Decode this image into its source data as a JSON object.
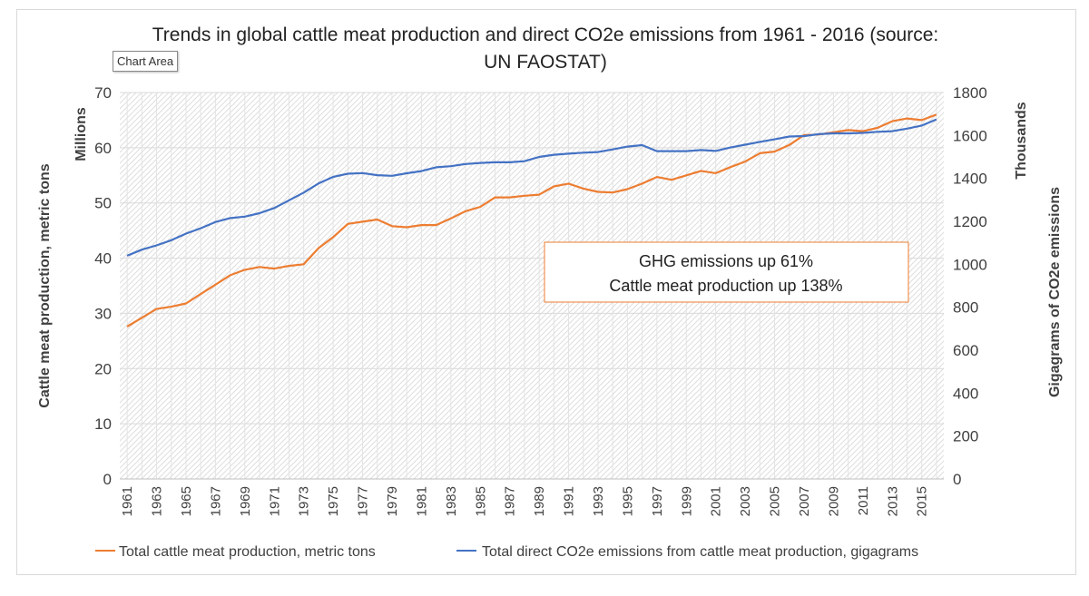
{
  "tooltip": {
    "label": "Chart Area"
  },
  "annotation": {
    "line1": "GHG emissions up 61%",
    "line2": "Cattle meat production up 138%",
    "border_color": "#ed7d31"
  },
  "chart_data": {
    "type": "line",
    "title_line1": "Trends in global cattle meat production and direct CO2e emissions from 1961 - 2016 (source:",
    "title_line2": "UN FAOSTAT)",
    "x": [
      1961,
      1962,
      1963,
      1964,
      1965,
      1966,
      1967,
      1968,
      1969,
      1970,
      1971,
      1972,
      1973,
      1974,
      1975,
      1976,
      1977,
      1978,
      1979,
      1980,
      1981,
      1982,
      1983,
      1984,
      1985,
      1986,
      1987,
      1988,
      1989,
      1990,
      1991,
      1992,
      1993,
      1994,
      1995,
      1996,
      1997,
      1998,
      1999,
      2000,
      2001,
      2002,
      2003,
      2004,
      2005,
      2006,
      2007,
      2008,
      2009,
      2010,
      2011,
      2012,
      2013,
      2014,
      2015,
      2016
    ],
    "x_tick_labels": [
      "1961",
      "1963",
      "1965",
      "1967",
      "1969",
      "1971",
      "1973",
      "1975",
      "1977",
      "1979",
      "1981",
      "1983",
      "1985",
      "1987",
      "1989",
      "1991",
      "1993",
      "1995",
      "1997",
      "1999",
      "2001",
      "2003",
      "2005",
      "2007",
      "2009",
      "2011",
      "2013",
      "2015"
    ],
    "y_left": {
      "label": "Cattle meat production, metric tons",
      "unit_label": "Millions",
      "ylim": [
        0,
        70
      ],
      "ticks": [
        "0",
        "10",
        "20",
        "30",
        "40",
        "50",
        "60",
        "70"
      ]
    },
    "y_right": {
      "label": "Gigagrams of CO2e emissions",
      "unit_label": "Thousands",
      "ylim": [
        0,
        1800
      ],
      "ticks": [
        "0",
        "200",
        "400",
        "600",
        "800",
        "1000",
        "1200",
        "1400",
        "1600",
        "1800"
      ]
    },
    "series": [
      {
        "name": "Total cattle meat production, metric tons",
        "axis": "left",
        "color": "#ed7d31",
        "values": [
          27.6,
          29.2,
          30.8,
          31.2,
          31.8,
          33.5,
          35.2,
          36.9,
          37.9,
          38.4,
          38.1,
          38.6,
          38.9,
          41.8,
          43.8,
          46.2,
          46.6,
          47.0,
          45.8,
          45.6,
          46.0,
          46.0,
          47.2,
          48.5,
          49.3,
          51.0,
          51.0,
          51.3,
          51.5,
          53.0,
          53.5,
          52.6,
          52.0,
          51.9,
          52.5,
          53.5,
          54.7,
          54.2,
          55.0,
          55.8,
          55.4,
          56.5,
          57.5,
          59.0,
          59.3,
          60.5,
          62.3,
          62.4,
          62.8,
          63.2,
          63.0,
          63.6,
          64.8,
          65.3,
          65.0,
          66.0
        ]
      },
      {
        "name": "Total direct CO2e emissions from cattle meat production, gigagrams",
        "axis": "right",
        "color": "#4472c4",
        "values": [
          1040,
          1068,
          1088,
          1112,
          1143,
          1168,
          1197,
          1215,
          1222,
          1238,
          1262,
          1298,
          1334,
          1376,
          1407,
          1422,
          1425,
          1415,
          1412,
          1424,
          1434,
          1452,
          1457,
          1467,
          1472,
          1475,
          1475,
          1480,
          1500,
          1510,
          1515,
          1520,
          1523,
          1535,
          1548,
          1555,
          1527,
          1527,
          1527,
          1532,
          1528,
          1544,
          1557,
          1570,
          1582,
          1595,
          1597,
          1606,
          1610,
          1610,
          1612,
          1617,
          1620,
          1632,
          1646,
          1675
        ]
      }
    ],
    "grid": true,
    "legend_position": "bottom"
  }
}
